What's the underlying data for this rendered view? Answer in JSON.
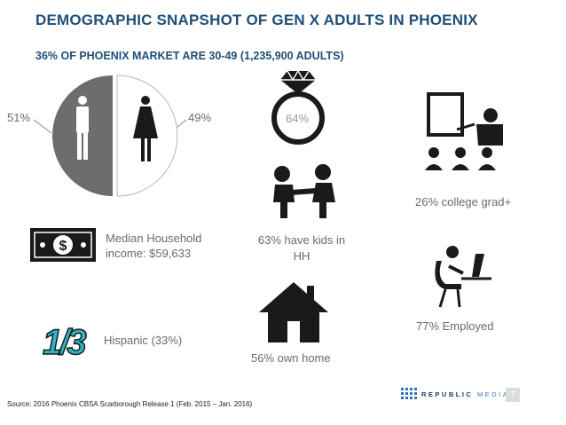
{
  "header": {
    "title": "DEMOGRAPHIC SNAPSHOT OF GEN X ADULTS IN PHOENIX",
    "subtitle": "36% OF PHOENIX MARKET ARE 30-49 (1,235,900 ADULTS)"
  },
  "gender": {
    "male_pct": "51%",
    "female_pct": "49%",
    "male_value": 51,
    "female_value": 49
  },
  "married": {
    "pct": "64%"
  },
  "income": {
    "label": "Median Household income: $59,633"
  },
  "kids": {
    "label": "63% have kids in HH"
  },
  "college": {
    "label": "26% college grad+"
  },
  "hispanic": {
    "fraction": "1/3",
    "label": "Hispanic (33%)"
  },
  "home": {
    "label": "56% own home"
  },
  "employed": {
    "label": "77% Employed"
  },
  "footer": {
    "source": "Source: 2016 Phoenix CBSA Scarborough Release 1 (Feb. 2015 – Jan. 2016)",
    "brand_word": "REPUBLIC",
    "brand_word2": "MEDIA",
    "page_number": "7"
  },
  "colors": {
    "title": "#1f4e79",
    "male_slice": "#6d6d6d",
    "female_slice": "#ffffff",
    "accent": "#2bb6c4"
  }
}
